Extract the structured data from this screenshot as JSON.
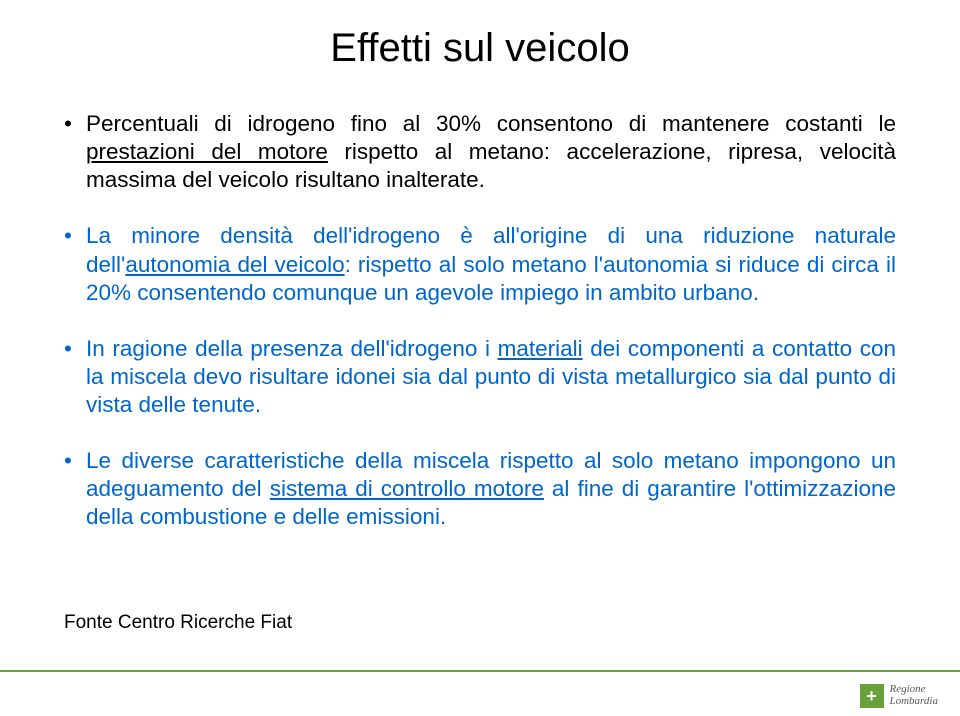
{
  "title": "Effetti sul veicolo",
  "bullets": {
    "b1": {
      "pre": "Percentuali di idrogeno fino al 30% consentono di mantenere costanti le ",
      "u1": "prestazioni del motore",
      "post": " rispetto al metano: accelerazione, ripresa, velocità massima del veicolo  risultano inalterate."
    },
    "b2": {
      "pre": "La minore densità dell'idrogeno è all'origine di una riduzione naturale dell'",
      "u1": "autonomia del veicolo",
      "post": ": rispetto al solo metano l'autonomia si riduce di circa il 20% consentendo comunque un agevole impiego in ambito urbano."
    },
    "b3": {
      "pre": "In ragione della presenza dell'idrogeno i ",
      "u1": "materiali",
      "post": " dei componenti a contatto con la miscela devo risultare idonei sia dal punto di vista metallurgico sia dal punto di vista delle tenute."
    },
    "b4": {
      "pre": "Le diverse caratteristiche della miscela rispetto al solo metano impongono un adeguamento del ",
      "u1": "sistema di controllo motore",
      "post": " al fine di garantire l'ottimizzazione della combustione e delle emissioni."
    }
  },
  "source": "Fonte Centro Ricerche Fiat",
  "logo": {
    "line1": "Regione",
    "line2": "Lombardia"
  },
  "colors": {
    "blue": "#0066cc",
    "accent": "#6aa23a",
    "text": "#000000",
    "bg": "#ffffff"
  }
}
